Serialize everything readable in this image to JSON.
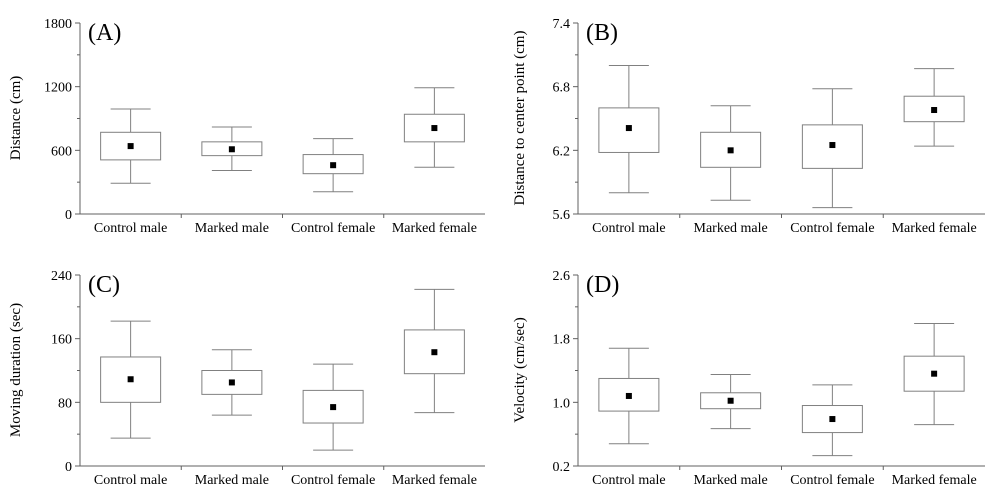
{
  "chart_data": [
    {
      "type": "box",
      "panel": "(A)",
      "ylabel": "Distance (cm)",
      "ylim": [
        0,
        1800
      ],
      "yticks": [
        0,
        600,
        1200,
        1800
      ],
      "categories": [
        "Control male",
        "Marked male",
        "Control female",
        "Marked female"
      ],
      "boxes": [
        {
          "whisker_low": 290,
          "q1": 510,
          "mean": 640,
          "q3": 770,
          "whisker_high": 990
        },
        {
          "whisker_low": 410,
          "q1": 550,
          "mean": 610,
          "q3": 680,
          "whisker_high": 820
        },
        {
          "whisker_low": 210,
          "q1": 380,
          "mean": 460,
          "q3": 560,
          "whisker_high": 710
        },
        {
          "whisker_low": 440,
          "q1": 680,
          "mean": 810,
          "q3": 940,
          "whisker_high": 1190
        }
      ]
    },
    {
      "type": "box",
      "panel": "(B)",
      "ylabel": "Distance to center point (cm)",
      "ylim": [
        5.6,
        7.4
      ],
      "yticks": [
        5.6,
        6.2,
        6.8,
        7.4
      ],
      "categories": [
        "Control male",
        "Marked male",
        "Control female",
        "Marked female"
      ],
      "boxes": [
        {
          "whisker_low": 5.8,
          "q1": 6.18,
          "mean": 6.41,
          "q3": 6.6,
          "whisker_high": 7.0
        },
        {
          "whisker_low": 5.73,
          "q1": 6.04,
          "mean": 6.2,
          "q3": 6.37,
          "whisker_high": 6.62
        },
        {
          "whisker_low": 5.66,
          "q1": 6.03,
          "mean": 6.25,
          "q3": 6.44,
          "whisker_high": 6.78
        },
        {
          "whisker_low": 6.24,
          "q1": 6.47,
          "mean": 6.58,
          "q3": 6.71,
          "whisker_high": 6.97
        }
      ]
    },
    {
      "type": "box",
      "panel": "(C)",
      "ylabel": "Moving duration (sec)",
      "ylim": [
        0,
        240
      ],
      "yticks": [
        0,
        80,
        160,
        240
      ],
      "categories": [
        "Control male",
        "Marked male",
        "Control female",
        "Marked female"
      ],
      "boxes": [
        {
          "whisker_low": 35,
          "q1": 80,
          "mean": 109,
          "q3": 137,
          "whisker_high": 182
        },
        {
          "whisker_low": 64,
          "q1": 90,
          "mean": 105,
          "q3": 120,
          "whisker_high": 146
        },
        {
          "whisker_low": 20,
          "q1": 54,
          "mean": 74,
          "q3": 95,
          "whisker_high": 128
        },
        {
          "whisker_low": 67,
          "q1": 116,
          "mean": 143,
          "q3": 171,
          "whisker_high": 222
        }
      ]
    },
    {
      "type": "box",
      "panel": "(D)",
      "ylabel": "Velocity (cm/sec)",
      "ylim": [
        0.2,
        2.6
      ],
      "yticks": [
        0.2,
        1.0,
        1.8,
        2.6
      ],
      "ytick_labels": [
        "0.2",
        "1.0",
        "1.8",
        "2.6"
      ],
      "categories": [
        "Control male",
        "Marked male",
        "Control female",
        "Marked female"
      ],
      "boxes": [
        {
          "whisker_low": 0.48,
          "q1": 0.89,
          "mean": 1.08,
          "q3": 1.3,
          "whisker_high": 1.68
        },
        {
          "whisker_low": 0.67,
          "q1": 0.92,
          "mean": 1.02,
          "q3": 1.12,
          "whisker_high": 1.35
        },
        {
          "whisker_low": 0.33,
          "q1": 0.62,
          "mean": 0.79,
          "q3": 0.96,
          "whisker_high": 1.22
        },
        {
          "whisker_low": 0.72,
          "q1": 1.14,
          "mean": 1.36,
          "q3": 1.58,
          "whisker_high": 1.99
        }
      ]
    }
  ],
  "colors": {
    "stroke": "#808080",
    "axis": "#606060",
    "mean_marker": "#000000",
    "text": "#000000"
  }
}
